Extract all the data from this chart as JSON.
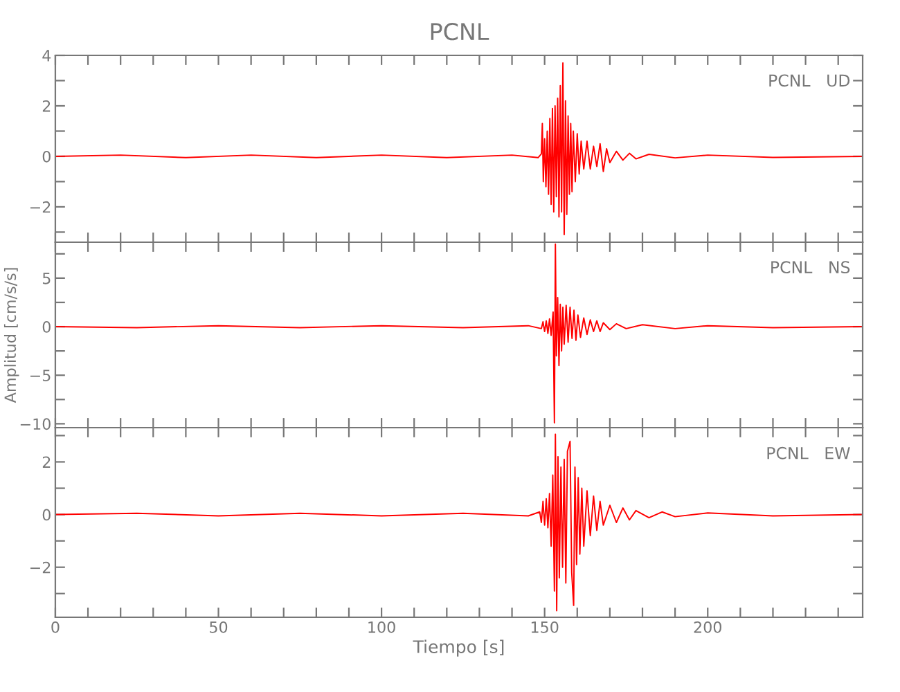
{
  "chart_data": [
    {
      "type": "line",
      "title": "PCNL",
      "annotations": [
        "PCNL   UD"
      ],
      "tick_labels": "y",
      "grid": false,
      "xlim": [
        0,
        247.5
      ],
      "ylim": [
        -3.4,
        4
      ],
      "xticks": [
        {
          "value": 0,
          "label": null
        },
        {
          "value": 10,
          "label": null
        },
        {
          "value": 20,
          "label": null
        },
        {
          "value": 30,
          "label": null
        },
        {
          "value": 40,
          "label": null
        },
        {
          "value": 50,
          "label": null
        },
        {
          "value": 60,
          "label": null
        },
        {
          "value": 70,
          "label": null
        },
        {
          "value": 80,
          "label": null
        },
        {
          "value": 90,
          "label": null
        },
        {
          "value": 100,
          "label": null
        },
        {
          "value": 110,
          "label": null
        },
        {
          "value": 120,
          "label": null
        },
        {
          "value": 130,
          "label": null
        },
        {
          "value": 140,
          "label": null
        },
        {
          "value": 150,
          "label": null
        },
        {
          "value": 160,
          "label": null
        },
        {
          "value": 170,
          "label": null
        },
        {
          "value": 180,
          "label": null
        },
        {
          "value": 190,
          "label": null
        },
        {
          "value": 200,
          "label": null
        },
        {
          "value": 210,
          "label": null
        },
        {
          "value": 220,
          "label": null
        },
        {
          "value": 230,
          "label": null
        },
        {
          "value": 240,
          "label": null
        }
      ],
      "yticks": [
        {
          "value": -3,
          "label": null
        },
        -2,
        {
          "value": -1,
          "label": null
        },
        0,
        {
          "value": 1,
          "label": null
        },
        2,
        {
          "value": 3,
          "label": null
        },
        4
      ],
      "series": [
        {
          "color": "#ff0000",
          "x": [
            0,
            20,
            40,
            60,
            80,
            100,
            120,
            140,
            148,
            149,
            149.3,
            149.6,
            150,
            150.4,
            150.8,
            151.2,
            151.6,
            152,
            152.4,
            152.8,
            153.2,
            153.6,
            154,
            154.4,
            154.8,
            155.2,
            155.6,
            156,
            156.4,
            156.8,
            157.2,
            157.6,
            158,
            158.4,
            158.8,
            159.4,
            160,
            160.6,
            161.2,
            162,
            163,
            164,
            165,
            166,
            167,
            168,
            169,
            170,
            172,
            174,
            176,
            178,
            182,
            190,
            200,
            220,
            247
          ],
          "values": [
            0,
            0.05,
            -0.05,
            0.05,
            -0.05,
            0.05,
            -0.05,
            0.05,
            -0.05,
            0.1,
            1.3,
            -1.0,
            0.7,
            -1.2,
            1.0,
            -1.5,
            1.5,
            -1.9,
            1.9,
            -2.2,
            2.0,
            -1.6,
            2.3,
            -2.4,
            2.8,
            -2.2,
            3.7,
            -3.1,
            2.2,
            -2.3,
            1.6,
            -1.5,
            1.3,
            -1.4,
            1.0,
            -1.0,
            0.9,
            -0.7,
            0.6,
            -0.5,
            0.6,
            -0.5,
            0.4,
            -0.4,
            0.5,
            -0.6,
            0.3,
            -0.25,
            0.2,
            -0.15,
            0.12,
            -0.1,
            0.08,
            -0.06,
            0.05,
            -0.04,
            0
          ]
        }
      ]
    },
    {
      "type": "line",
      "ylabel": "Amplitud [cm/s/s]",
      "annotations": [
        "PCNL   NS"
      ],
      "tick_labels": "y",
      "grid": false,
      "xlim": [
        0,
        247.5
      ],
      "ylim": [
        -10.4,
        8.7
      ],
      "xticks": [
        {
          "value": 0,
          "label": null
        },
        {
          "value": 10,
          "label": null
        },
        {
          "value": 20,
          "label": null
        },
        {
          "value": 30,
          "label": null
        },
        {
          "value": 40,
          "label": null
        },
        {
          "value": 50,
          "label": null
        },
        {
          "value": 60,
          "label": null
        },
        {
          "value": 70,
          "label": null
        },
        {
          "value": 80,
          "label": null
        },
        {
          "value": 90,
          "label": null
        },
        {
          "value": 100,
          "label": null
        },
        {
          "value": 110,
          "label": null
        },
        {
          "value": 120,
          "label": null
        },
        {
          "value": 130,
          "label": null
        },
        {
          "value": 140,
          "label": null
        },
        {
          "value": 150,
          "label": null
        },
        {
          "value": 160,
          "label": null
        },
        {
          "value": 170,
          "label": null
        },
        {
          "value": 180,
          "label": null
        },
        {
          "value": 190,
          "label": null
        },
        {
          "value": 200,
          "label": null
        },
        {
          "value": 210,
          "label": null
        },
        {
          "value": 220,
          "label": null
        },
        {
          "value": 230,
          "label": null
        },
        {
          "value": 240,
          "label": null
        }
      ],
      "yticks": [
        -10,
        {
          "value": -7.5,
          "label": null
        },
        -5,
        {
          "value": -2.5,
          "label": null
        },
        0,
        {
          "value": 2.5,
          "label": null
        },
        5,
        {
          "value": 7.5,
          "label": null
        }
      ],
      "series": [
        {
          "color": "#ff0000",
          "x": [
            0,
            25,
            50,
            75,
            100,
            125,
            145,
            149,
            149.5,
            150,
            150.5,
            151,
            151.5,
            152,
            152.6,
            153,
            153.3,
            153.6,
            154,
            154.4,
            154.8,
            155.2,
            155.6,
            156,
            156.6,
            157.2,
            157.8,
            158.4,
            159,
            159.6,
            160.2,
            161,
            162,
            163,
            164,
            165,
            166,
            167,
            168,
            170,
            172,
            175,
            180,
            190,
            200,
            220,
            247
          ],
          "values": [
            0,
            -0.1,
            0.1,
            -0.1,
            0.1,
            -0.1,
            0.1,
            -0.2,
            0.5,
            -0.5,
            0.6,
            -0.7,
            0.8,
            -0.9,
            1.5,
            -9.9,
            8.5,
            -3.0,
            3.0,
            -4.0,
            2.3,
            -2.5,
            2.0,
            -1.8,
            2.2,
            -1.6,
            2.0,
            -1.2,
            1.7,
            -1.4,
            1.2,
            -1.1,
            0.9,
            -0.8,
            0.7,
            -0.5,
            0.6,
            -0.5,
            0.4,
            -0.3,
            0.3,
            -0.2,
            0.2,
            -0.2,
            0.1,
            -0.1,
            0
          ]
        }
      ]
    },
    {
      "type": "line",
      "xlabel": "Tiempo [s]",
      "annotations": [
        "PCNL   EW"
      ],
      "grid": false,
      "xlim": [
        0,
        247.5
      ],
      "ylim": [
        -3.9,
        3.3
      ],
      "xticks": [
        0,
        {
          "value": 10,
          "label": null
        },
        {
          "value": 20,
          "label": null
        },
        {
          "value": 30,
          "label": null
        },
        {
          "value": 40,
          "label": null
        },
        50,
        {
          "value": 60,
          "label": null
        },
        {
          "value": 70,
          "label": null
        },
        {
          "value": 80,
          "label": null
        },
        {
          "value": 90,
          "label": null
        },
        100,
        {
          "value": 110,
          "label": null
        },
        {
          "value": 120,
          "label": null
        },
        {
          "value": 130,
          "label": null
        },
        {
          "value": 140,
          "label": null
        },
        150,
        {
          "value": 160,
          "label": null
        },
        {
          "value": 170,
          "label": null
        },
        {
          "value": 180,
          "label": null
        },
        {
          "value": 190,
          "label": null
        },
        200,
        {
          "value": 210,
          "label": null
        },
        {
          "value": 220,
          "label": null
        },
        {
          "value": 230,
          "label": null
        },
        {
          "value": 240,
          "label": null
        }
      ],
      "yticks": [
        {
          "value": -3,
          "label": null
        },
        -2,
        {
          "value": -1,
          "label": null
        },
        0,
        {
          "value": 1,
          "label": null
        },
        2,
        {
          "value": 3,
          "label": null
        }
      ],
      "series": [
        {
          "color": "#ff0000",
          "x": [
            0,
            25,
            50,
            75,
            100,
            125,
            145,
            148.5,
            149,
            149.5,
            150,
            150.5,
            151,
            151.5,
            152,
            152.5,
            153,
            153.3,
            153.7,
            154.1,
            154.5,
            155,
            155.5,
            156,
            156.5,
            157,
            157.8,
            158.3,
            158.9,
            159.3,
            159.8,
            160.3,
            160.8,
            161.4,
            162,
            163,
            164,
            165,
            166,
            167,
            168,
            170,
            172,
            174,
            176,
            178,
            182,
            186,
            190,
            200,
            220,
            247
          ],
          "values": [
            0,
            0.05,
            -0.05,
            0.05,
            -0.05,
            0.05,
            -0.05,
            0.1,
            -0.3,
            0.5,
            -0.4,
            0.6,
            -0.5,
            0.8,
            -1.2,
            1.5,
            -2.9,
            3.05,
            -3.65,
            2.2,
            -2.4,
            1.8,
            -2.0,
            2.1,
            -2.6,
            2.4,
            2.78,
            -2.2,
            -3.45,
            1.8,
            -1.9,
            1.4,
            -1.5,
            1.0,
            -1.2,
            0.9,
            -0.8,
            0.7,
            -0.6,
            0.5,
            -0.4,
            0.35,
            -0.3,
            0.25,
            -0.2,
            0.15,
            -0.12,
            0.1,
            -0.08,
            0.06,
            -0.05,
            0
          ]
        }
      ]
    }
  ]
}
